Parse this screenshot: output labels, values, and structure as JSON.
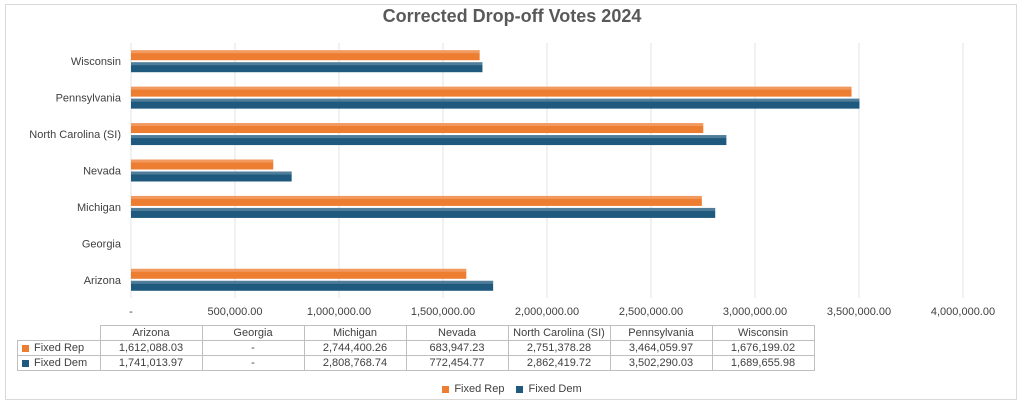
{
  "chart_data": {
    "type": "bar",
    "orientation": "horizontal",
    "title": "Corrected Drop-off Votes 2024",
    "categories": [
      "Arizona",
      "Georgia",
      "Michigan",
      "Nevada",
      "North Carolina (SI)",
      "Pennsylvania",
      "Wisconsin"
    ],
    "series": [
      {
        "name": "Fixed Rep",
        "color": "#ED7D31",
        "values": [
          1612088.03,
          0,
          2744400.26,
          683947.23,
          2751378.28,
          3464059.97,
          1676199.02
        ],
        "labels": [
          "1,612,088.03",
          "-",
          "2,744,400.26",
          "683,947.23",
          "2,751,378.28",
          "3,464,059.97",
          "1,676,199.02"
        ]
      },
      {
        "name": "Fixed Dem",
        "color": "#1F5A7E",
        "values": [
          1741013.97,
          0,
          2808768.74,
          772454.77,
          2862419.72,
          3502290.03,
          1689655.98
        ],
        "labels": [
          "1,741,013.97",
          "-",
          "2,808,768.74",
          "772,454.77",
          "2,862,419.72",
          "3,502,290.03",
          "1,689,655.98"
        ]
      }
    ],
    "xlim": [
      0,
      4000000
    ],
    "x_ticks": [
      0,
      500000,
      1000000,
      1500000,
      2000000,
      2500000,
      3000000,
      3500000,
      4000000
    ],
    "x_tick_labels": [
      "-",
      "500,000.00",
      "1,000,000.00",
      "1,500,000.00",
      "2,000,000.00",
      "2,500,000.00",
      "3,000,000.00",
      "3,500,000.00",
      "4,000,000.00"
    ],
    "grid": true,
    "legend": "bottom",
    "data_table": true
  }
}
